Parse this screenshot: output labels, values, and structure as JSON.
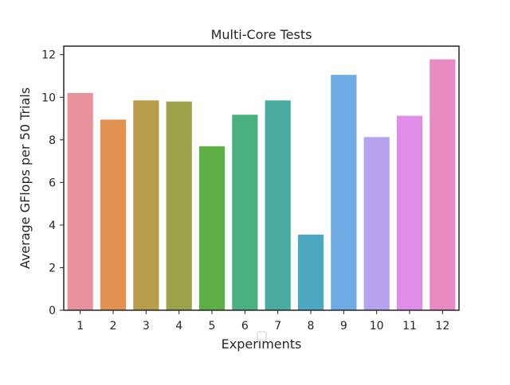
{
  "chart_data": {
    "type": "bar",
    "title": "Multi-Core Tests",
    "xlabel": "Experiments",
    "ylabel": "Average GFlops per 50 Trials",
    "categories": [
      "1",
      "2",
      "3",
      "4",
      "5",
      "6",
      "7",
      "8",
      "9",
      "10",
      "11",
      "12"
    ],
    "values": [
      10.2,
      8.95,
      9.85,
      9.8,
      7.7,
      9.18,
      9.85,
      3.55,
      11.05,
      8.13,
      9.13,
      11.78
    ],
    "ylim": [
      0,
      12.4
    ],
    "yticks": [
      0,
      2,
      4,
      6,
      8,
      10,
      12
    ],
    "colors": [
      "#e8929e",
      "#e29150",
      "#b89c4c",
      "#9ba24a",
      "#5eb046",
      "#4bb07f",
      "#4aaba3",
      "#4ba8c0",
      "#6eaae6",
      "#b6a2ee",
      "#df8de8",
      "#e88bc5"
    ],
    "grid": false,
    "legend": "empty-box-lower-center"
  }
}
